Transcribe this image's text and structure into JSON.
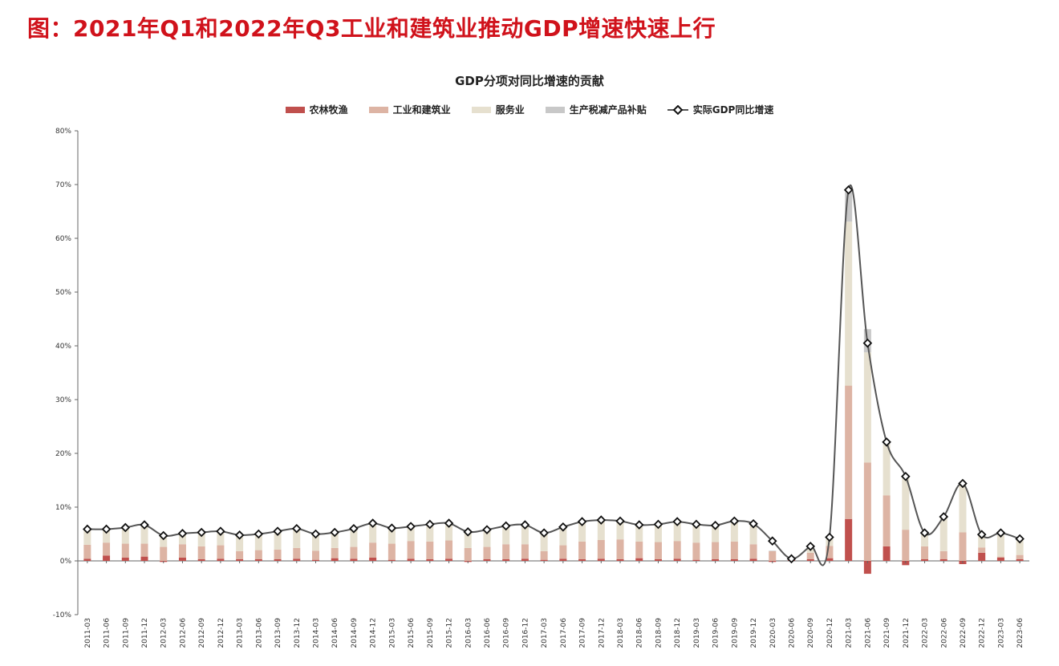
{
  "page": {
    "title": "图：2021年Q1和2022年Q3工业和建筑业推动GDP增速快速上行"
  },
  "chart_data": {
    "type": "bar",
    "stacked": true,
    "title": "GDP分项对同比增速的贡献",
    "xlabel": "",
    "ylabel": "",
    "ylim": [
      -10,
      80
    ],
    "yticks": [
      -10,
      0,
      10,
      20,
      30,
      40,
      50,
      60,
      70,
      80
    ],
    "ytick_labels": [
      "-10%",
      "0%",
      "10%",
      "20%",
      "30%",
      "40%",
      "50%",
      "60%",
      "70%",
      "80%"
    ],
    "legend_position": "top-center",
    "grid": false,
    "categories": [
      "2011-03",
      "2011-06",
      "2011-09",
      "2011-12",
      "2012-03",
      "2012-06",
      "2012-09",
      "2012-12",
      "2013-03",
      "2013-06",
      "2013-09",
      "2013-12",
      "2014-03",
      "2014-06",
      "2014-09",
      "2014-12",
      "2015-03",
      "2015-06",
      "2015-09",
      "2015-12",
      "2016-03",
      "2016-06",
      "2016-09",
      "2016-12",
      "2017-03",
      "2017-06",
      "2017-09",
      "2017-12",
      "2018-03",
      "2018-06",
      "2018-09",
      "2018-12",
      "2019-03",
      "2019-06",
      "2019-09",
      "2019-12",
      "2020-03",
      "2020-06",
      "2020-09",
      "2020-12",
      "2021-03",
      "2021-06",
      "2021-09",
      "2021-12",
      "2022-03",
      "2022-06",
      "2022-09",
      "2022-12",
      "2023-03",
      "2023-06"
    ],
    "series": [
      {
        "name": "农林牧渔",
        "color": "#c0504d",
        "values": [
          0.4,
          1.0,
          0.6,
          0.8,
          -0.2,
          0.6,
          0.3,
          0.4,
          0.3,
          0.3,
          0.3,
          0.4,
          0.2,
          0.5,
          0.4,
          0.6,
          0.2,
          0.4,
          0.3,
          0.4,
          -0.2,
          0.3,
          0.3,
          0.4,
          0.2,
          0.4,
          0.3,
          0.4,
          0.3,
          0.5,
          0.3,
          0.4,
          0.2,
          0.3,
          0.3,
          0.4,
          -0.2,
          0.2,
          0.3,
          0.5,
          7.8,
          -2.4,
          2.7,
          -0.8,
          0.3,
          0.3,
          -0.6,
          1.5,
          0.6,
          0.3
        ]
      },
      {
        "name": "工业和建筑业",
        "color": "#ddb4a4",
        "values": [
          2.6,
          2.4,
          2.6,
          2.4,
          2.6,
          2.5,
          2.4,
          2.5,
          1.5,
          1.7,
          1.8,
          2.0,
          1.7,
          1.9,
          2.2,
          2.8,
          3.0,
          3.3,
          3.3,
          3.4,
          2.4,
          2.3,
          2.8,
          2.7,
          1.6,
          2.5,
          3.3,
          3.5,
          3.7,
          3.1,
          3.2,
          3.3,
          3.2,
          3.2,
          3.3,
          2.7,
          1.8,
          0.1,
          1.2,
          2.3,
          24.8,
          18.3,
          9.5,
          5.8,
          2.4,
          1.5,
          5.3,
          1.0,
          0.2,
          0.8
        ]
      },
      {
        "name": "服务业",
        "color": "#e6e0cf",
        "values": [
          2.7,
          2.3,
          2.8,
          3.4,
          2.2,
          1.9,
          2.5,
          2.6,
          2.9,
          2.8,
          3.2,
          3.5,
          2.9,
          2.7,
          3.1,
          3.5,
          2.8,
          2.6,
          3.1,
          3.1,
          3.3,
          3.1,
          3.3,
          3.5,
          3.2,
          3.3,
          3.6,
          3.7,
          3.4,
          3.0,
          3.2,
          3.5,
          3.3,
          3.0,
          3.8,
          3.9,
          0.0,
          0.1,
          1.1,
          1.5,
          30.5,
          20.5,
          9.5,
          9.7,
          2.3,
          6.3,
          8.8,
          2.3,
          4.0,
          2.8
        ]
      },
      {
        "name": "生产税减产品补贴",
        "color": "#c8c8c8",
        "values": [
          0.1,
          0.1,
          0.1,
          0.1,
          0.1,
          0.1,
          0.1,
          0.1,
          0.1,
          0.1,
          0.1,
          0.1,
          0.1,
          0.1,
          0.1,
          0.1,
          0.1,
          0.1,
          0.1,
          0.1,
          0.1,
          0.1,
          0.1,
          0.1,
          0.1,
          0.1,
          0.1,
          0.1,
          0.1,
          0.1,
          0.1,
          0.1,
          0.1,
          0.1,
          0.1,
          0.1,
          0.1,
          0.0,
          0.1,
          0.1,
          5.5,
          4.3,
          0.5,
          0.2,
          0.2,
          0.2,
          0.2,
          0.1,
          0.1,
          0.1
        ]
      },
      {
        "name": "实际GDP同比增速",
        "type": "line",
        "color": "#555555",
        "values": [
          5.9,
          5.9,
          6.2,
          6.7,
          4.7,
          5.1,
          5.3,
          5.5,
          4.8,
          5.0,
          5.5,
          6.0,
          5.0,
          5.3,
          6.0,
          7.0,
          6.1,
          6.4,
          6.8,
          7.0,
          5.4,
          5.8,
          6.5,
          6.7,
          5.2,
          6.3,
          7.3,
          7.6,
          7.4,
          6.7,
          6.8,
          7.3,
          6.8,
          6.6,
          7.4,
          6.9,
          3.7,
          0.4,
          2.7,
          4.4,
          69.0,
          40.5,
          22.1,
          15.7,
          5.2,
          8.2,
          14.4,
          4.9,
          5.2,
          4.1
        ]
      }
    ]
  }
}
